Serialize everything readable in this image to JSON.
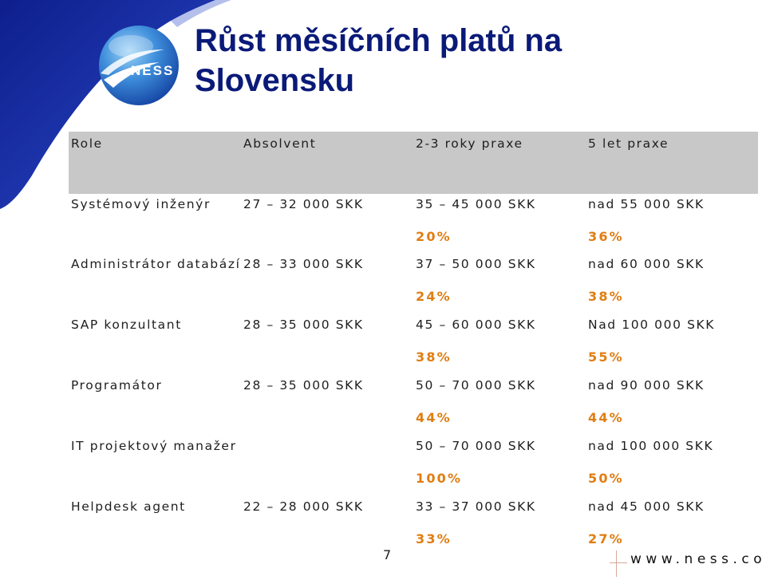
{
  "slide": {
    "title_line1": "Růst měsíčních platů na",
    "title_line2": "Slovensku",
    "logo_text": "NESS",
    "page_number": "7",
    "website": "www.ness.com"
  },
  "table": {
    "headers": [
      "Role",
      "Absolvent",
      "2-3 roky praxe",
      "5 let praxe"
    ],
    "rows": [
      {
        "role": "Systémový inženýr",
        "absolvent": "27 – 32 000 SKK",
        "praxe_2_3": "35 – 45 000 SKK",
        "praxe_5": "nad 55 000 SKK",
        "pct_2_3": "20%",
        "pct_5": "36%"
      },
      {
        "role": "Administrátor databází",
        "absolvent": "28 – 33 000 SKK",
        "praxe_2_3": "37 – 50 000 SKK",
        "praxe_5": "nad  60 000 SKK",
        "pct_2_3": "24%",
        "pct_5": "38%"
      },
      {
        "role": "SAP konzultant",
        "absolvent": "28 – 35 000 SKK",
        "praxe_2_3": "45 – 60 000 SKK",
        "praxe_5": "Nad 100 000 SKK",
        "pct_2_3": "38%",
        "pct_5": "55%"
      },
      {
        "role": "Programátor",
        "absolvent": "28 – 35 000 SKK",
        "praxe_2_3": "50 – 70 000 SKK",
        "praxe_5": "nad 90 000 SKK",
        "pct_2_3": "44%",
        "pct_5": "44%"
      },
      {
        "role": "IT projektový manažer",
        "absolvent": "",
        "praxe_2_3": "50 – 70 000 SKK",
        "praxe_5": "nad 100 000 SKK",
        "pct_2_3": "100%",
        "pct_5": "50%"
      },
      {
        "role": "Helpdesk agent",
        "absolvent": "22 – 28 000 SKK",
        "praxe_2_3": "33 – 37 000 SKK",
        "praxe_5": "nad 45 000 SKK",
        "pct_2_3": "33%",
        "pct_5": "27%"
      }
    ]
  },
  "colors": {
    "title": "#0a1a78",
    "header_band": "#c8c8c8",
    "percent": "#e07d12",
    "corner_blue": "#1a2a9a"
  }
}
